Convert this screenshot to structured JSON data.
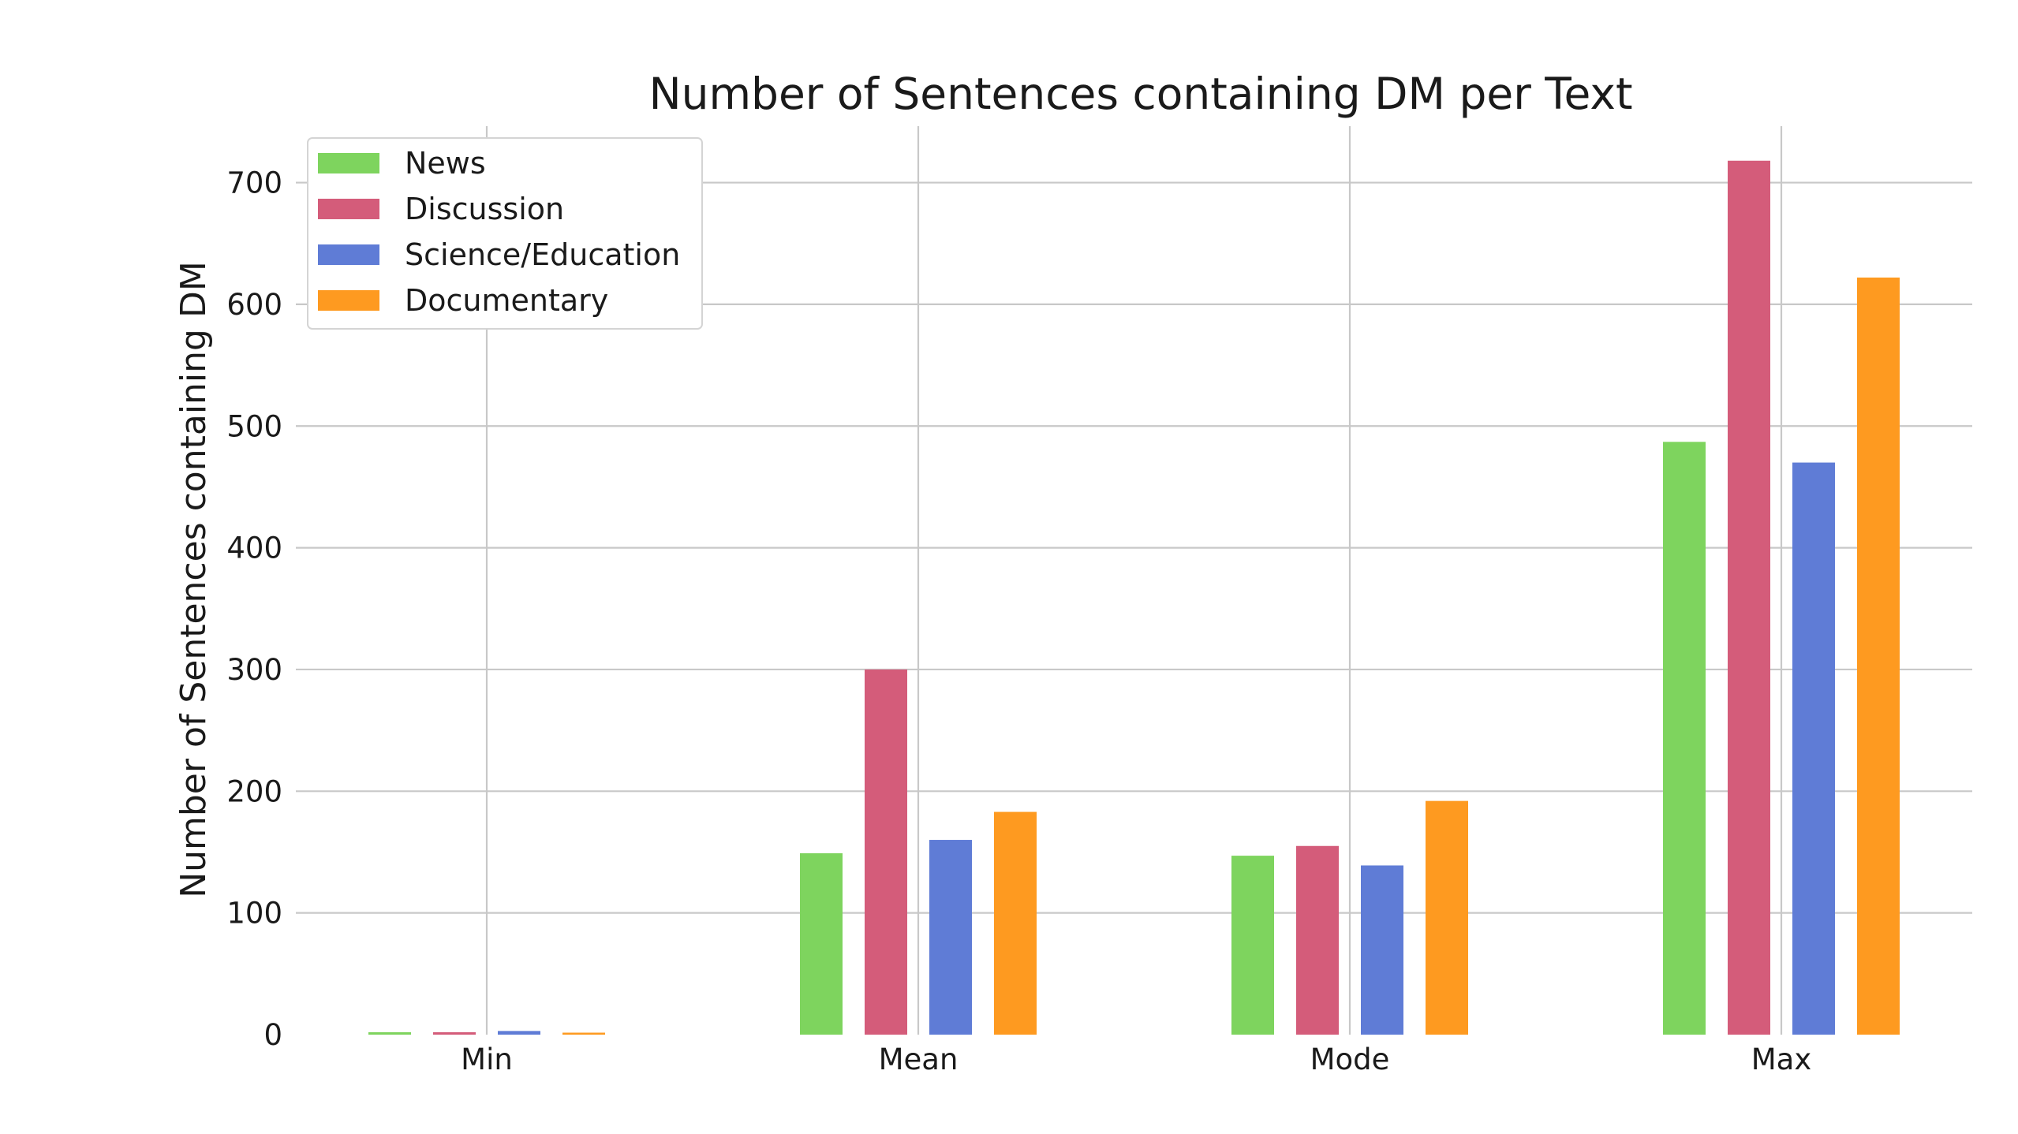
{
  "chart_data": {
    "type": "bar",
    "title": "Number of Sentences containing  DM per Text",
    "xlabel": "",
    "ylabel": "Number of Sentences containing DM",
    "categories": [
      "Min",
      "Mean",
      "Mode",
      "Max"
    ],
    "series": [
      {
        "name": "News",
        "color": "#7ed45e",
        "values": [
          2,
          149,
          147,
          487
        ]
      },
      {
        "name": "Discussion",
        "color": "#d45c7a",
        "values": [
          2,
          300,
          155,
          718
        ]
      },
      {
        "name": "Science/Education",
        "color": "#5f7cd6",
        "values": [
          3,
          160,
          139,
          470
        ]
      },
      {
        "name": "Documentary",
        "color": "#fe9a20",
        "values": [
          1,
          183,
          192,
          622
        ]
      }
    ],
    "ylim": [
      0,
      750
    ],
    "yticks": [
      0,
      100,
      200,
      300,
      400,
      500,
      600,
      700
    ],
    "grid": true,
    "legend_position": "top-left"
  }
}
